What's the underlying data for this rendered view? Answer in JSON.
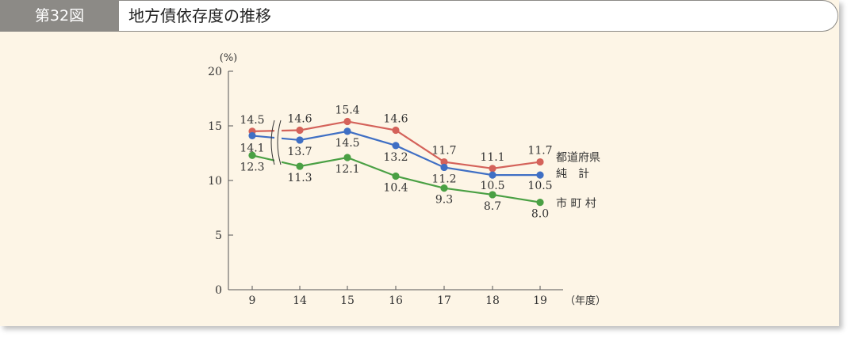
{
  "header": {
    "figure_label": "第32図",
    "title": "地方債依存度の推移"
  },
  "chart_data": {
    "type": "line",
    "title": "地方債依存度の推移",
    "categories": [
      "9",
      "14",
      "15",
      "16",
      "17",
      "18",
      "19"
    ],
    "xlabel": "（年度）",
    "ylabel": "(%)",
    "ylim": [
      0,
      20
    ],
    "yticks": [
      0,
      5,
      10,
      15,
      20
    ],
    "axis_break_between": [
      "9",
      "14"
    ],
    "grid": false,
    "legend": "right-end labels",
    "series": [
      {
        "name": "都道府県",
        "color": "#d4625a",
        "values": [
          14.5,
          14.6,
          15.4,
          14.6,
          11.7,
          11.1,
          11.7
        ]
      },
      {
        "name": "純　計",
        "color": "#3f6fc4",
        "values": [
          14.1,
          13.7,
          14.5,
          13.2,
          11.2,
          10.5,
          10.5
        ]
      },
      {
        "name": "市 町 村",
        "color": "#4aa044",
        "values": [
          12.3,
          11.3,
          12.1,
          10.4,
          9.3,
          8.7,
          8.0
        ]
      }
    ]
  }
}
